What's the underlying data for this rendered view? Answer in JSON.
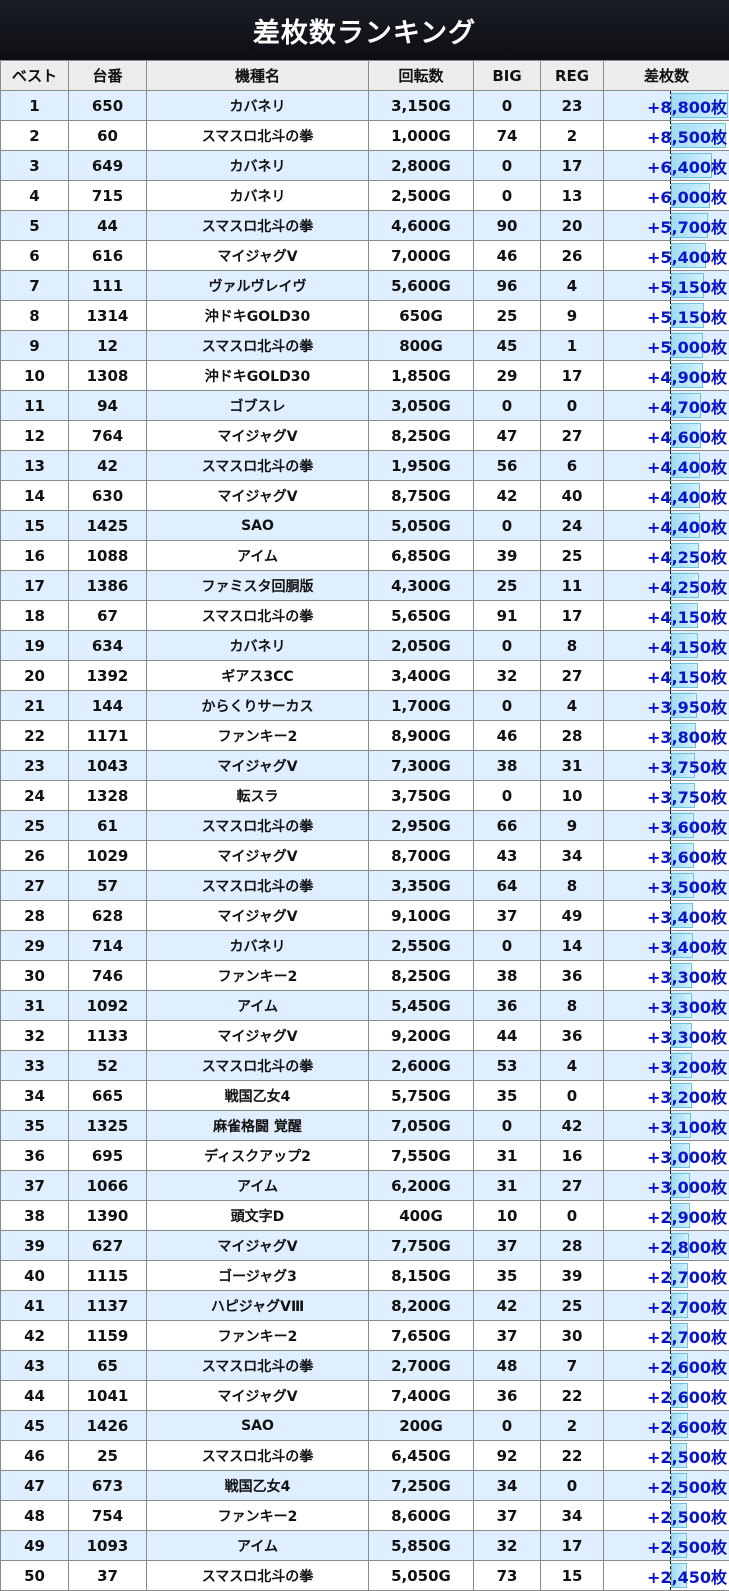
{
  "title": "差枚数ランキング",
  "headers": [
    "ベスト",
    "台番",
    "機種名",
    "回転数",
    "BIG",
    "REG",
    "差枚数"
  ],
  "colors": {
    "odd_row": "#e0efff",
    "header_bg": "#ececec",
    "diff_text": "#0a14c8",
    "bar": "#9fdcf5"
  },
  "rows": [
    [
      "1",
      "650",
      "カバネリ",
      "3,150G",
      "0",
      "23",
      "+8,800枚",
      8800
    ],
    [
      "2",
      "60",
      "スマスロ北斗の拳",
      "1,000G",
      "74",
      "2",
      "+8,500枚",
      8500
    ],
    [
      "3",
      "649",
      "カバネリ",
      "2,800G",
      "0",
      "17",
      "+6,400枚",
      6400
    ],
    [
      "4",
      "715",
      "カバネリ",
      "2,500G",
      "0",
      "13",
      "+6,000枚",
      6000
    ],
    [
      "5",
      "44",
      "スマスロ北斗の拳",
      "4,600G",
      "90",
      "20",
      "+5,700枚",
      5700
    ],
    [
      "6",
      "616",
      "マイジャグV",
      "7,000G",
      "46",
      "26",
      "+5,400枚",
      5400
    ],
    [
      "7",
      "111",
      "ヴァルヴレイヴ",
      "5,600G",
      "96",
      "4",
      "+5,150枚",
      5150
    ],
    [
      "8",
      "1314",
      "沖ドキGOLD30",
      "650G",
      "25",
      "9",
      "+5,150枚",
      5150
    ],
    [
      "9",
      "12",
      "スマスロ北斗の拳",
      "800G",
      "45",
      "1",
      "+5,000枚",
      5000
    ],
    [
      "10",
      "1308",
      "沖ドキGOLD30",
      "1,850G",
      "29",
      "17",
      "+4,900枚",
      4900
    ],
    [
      "11",
      "94",
      "ゴブスレ",
      "3,050G",
      "0",
      "0",
      "+4,700枚",
      4700
    ],
    [
      "12",
      "764",
      "マイジャグV",
      "8,250G",
      "47",
      "27",
      "+4,600枚",
      4600
    ],
    [
      "13",
      "42",
      "スマスロ北斗の拳",
      "1,950G",
      "56",
      "6",
      "+4,400枚",
      4400
    ],
    [
      "14",
      "630",
      "マイジャグV",
      "8,750G",
      "42",
      "40",
      "+4,400枚",
      4400
    ],
    [
      "15",
      "1425",
      "SAO",
      "5,050G",
      "0",
      "24",
      "+4,400枚",
      4400
    ],
    [
      "16",
      "1088",
      "アイム",
      "6,850G",
      "39",
      "25",
      "+4,250枚",
      4250
    ],
    [
      "17",
      "1386",
      "ファミスタ回胴版",
      "4,300G",
      "25",
      "11",
      "+4,250枚",
      4250
    ],
    [
      "18",
      "67",
      "スマスロ北斗の拳",
      "5,650G",
      "91",
      "17",
      "+4,150枚",
      4150
    ],
    [
      "19",
      "634",
      "カバネリ",
      "2,050G",
      "0",
      "8",
      "+4,150枚",
      4150
    ],
    [
      "20",
      "1392",
      "ギアス3CC",
      "3,400G",
      "32",
      "27",
      "+4,150枚",
      4150
    ],
    [
      "21",
      "144",
      "からくりサーカス",
      "1,700G",
      "0",
      "4",
      "+3,950枚",
      3950
    ],
    [
      "22",
      "1171",
      "ファンキー2",
      "8,900G",
      "46",
      "28",
      "+3,800枚",
      3800
    ],
    [
      "23",
      "1043",
      "マイジャグV",
      "7,300G",
      "38",
      "31",
      "+3,750枚",
      3750
    ],
    [
      "24",
      "1328",
      "転スラ",
      "3,750G",
      "0",
      "10",
      "+3,750枚",
      3750
    ],
    [
      "25",
      "61",
      "スマスロ北斗の拳",
      "2,950G",
      "66",
      "9",
      "+3,600枚",
      3600
    ],
    [
      "26",
      "1029",
      "マイジャグV",
      "8,700G",
      "43",
      "34",
      "+3,600枚",
      3600
    ],
    [
      "27",
      "57",
      "スマスロ北斗の拳",
      "3,350G",
      "64",
      "8",
      "+3,500枚",
      3500
    ],
    [
      "28",
      "628",
      "マイジャグV",
      "9,100G",
      "37",
      "49",
      "+3,400枚",
      3400
    ],
    [
      "29",
      "714",
      "カバネリ",
      "2,550G",
      "0",
      "14",
      "+3,400枚",
      3400
    ],
    [
      "30",
      "746",
      "ファンキー2",
      "8,250G",
      "38",
      "36",
      "+3,300枚",
      3300
    ],
    [
      "31",
      "1092",
      "アイム",
      "5,450G",
      "36",
      "8",
      "+3,300枚",
      3300
    ],
    [
      "32",
      "1133",
      "マイジャグV",
      "9,200G",
      "44",
      "36",
      "+3,300枚",
      3300
    ],
    [
      "33",
      "52",
      "スマスロ北斗の拳",
      "2,600G",
      "53",
      "4",
      "+3,200枚",
      3200
    ],
    [
      "34",
      "665",
      "戦国乙女4",
      "5,750G",
      "35",
      "0",
      "+3,200枚",
      3200
    ],
    [
      "35",
      "1325",
      "麻雀格闘 覚醒",
      "7,050G",
      "0",
      "42",
      "+3,100枚",
      3100
    ],
    [
      "36",
      "695",
      "ディスクアップ2",
      "7,550G",
      "31",
      "16",
      "+3,000枚",
      3000
    ],
    [
      "37",
      "1066",
      "アイム",
      "6,200G",
      "31",
      "27",
      "+3,000枚",
      3000
    ],
    [
      "38",
      "1390",
      "頭文字D",
      "400G",
      "10",
      "0",
      "+2,900枚",
      2900
    ],
    [
      "39",
      "627",
      "マイジャグV",
      "7,750G",
      "37",
      "28",
      "+2,800枚",
      2800
    ],
    [
      "40",
      "1115",
      "ゴージャグ3",
      "8,150G",
      "35",
      "39",
      "+2,700枚",
      2700
    ],
    [
      "41",
      "1137",
      "ハピジャグVⅢ",
      "8,200G",
      "42",
      "25",
      "+2,700枚",
      2700
    ],
    [
      "42",
      "1159",
      "ファンキー2",
      "7,650G",
      "37",
      "30",
      "+2,700枚",
      2700
    ],
    [
      "43",
      "65",
      "スマスロ北斗の拳",
      "2,700G",
      "48",
      "7",
      "+2,600枚",
      2600
    ],
    [
      "44",
      "1041",
      "マイジャグV",
      "7,400G",
      "36",
      "22",
      "+2,600枚",
      2600
    ],
    [
      "45",
      "1426",
      "SAO",
      "200G",
      "0",
      "2",
      "+2,600枚",
      2600
    ],
    [
      "46",
      "25",
      "スマスロ北斗の拳",
      "6,450G",
      "92",
      "22",
      "+2,500枚",
      2500
    ],
    [
      "47",
      "673",
      "戦国乙女4",
      "7,250G",
      "34",
      "0",
      "+2,500枚",
      2500
    ],
    [
      "48",
      "754",
      "ファンキー2",
      "8,600G",
      "37",
      "34",
      "+2,500枚",
      2500
    ],
    [
      "49",
      "1093",
      "アイム",
      "5,850G",
      "32",
      "17",
      "+2,500枚",
      2500
    ],
    [
      "50",
      "37",
      "スマスロ北斗の拳",
      "5,050G",
      "73",
      "15",
      "+2,450枚",
      2450
    ]
  ]
}
